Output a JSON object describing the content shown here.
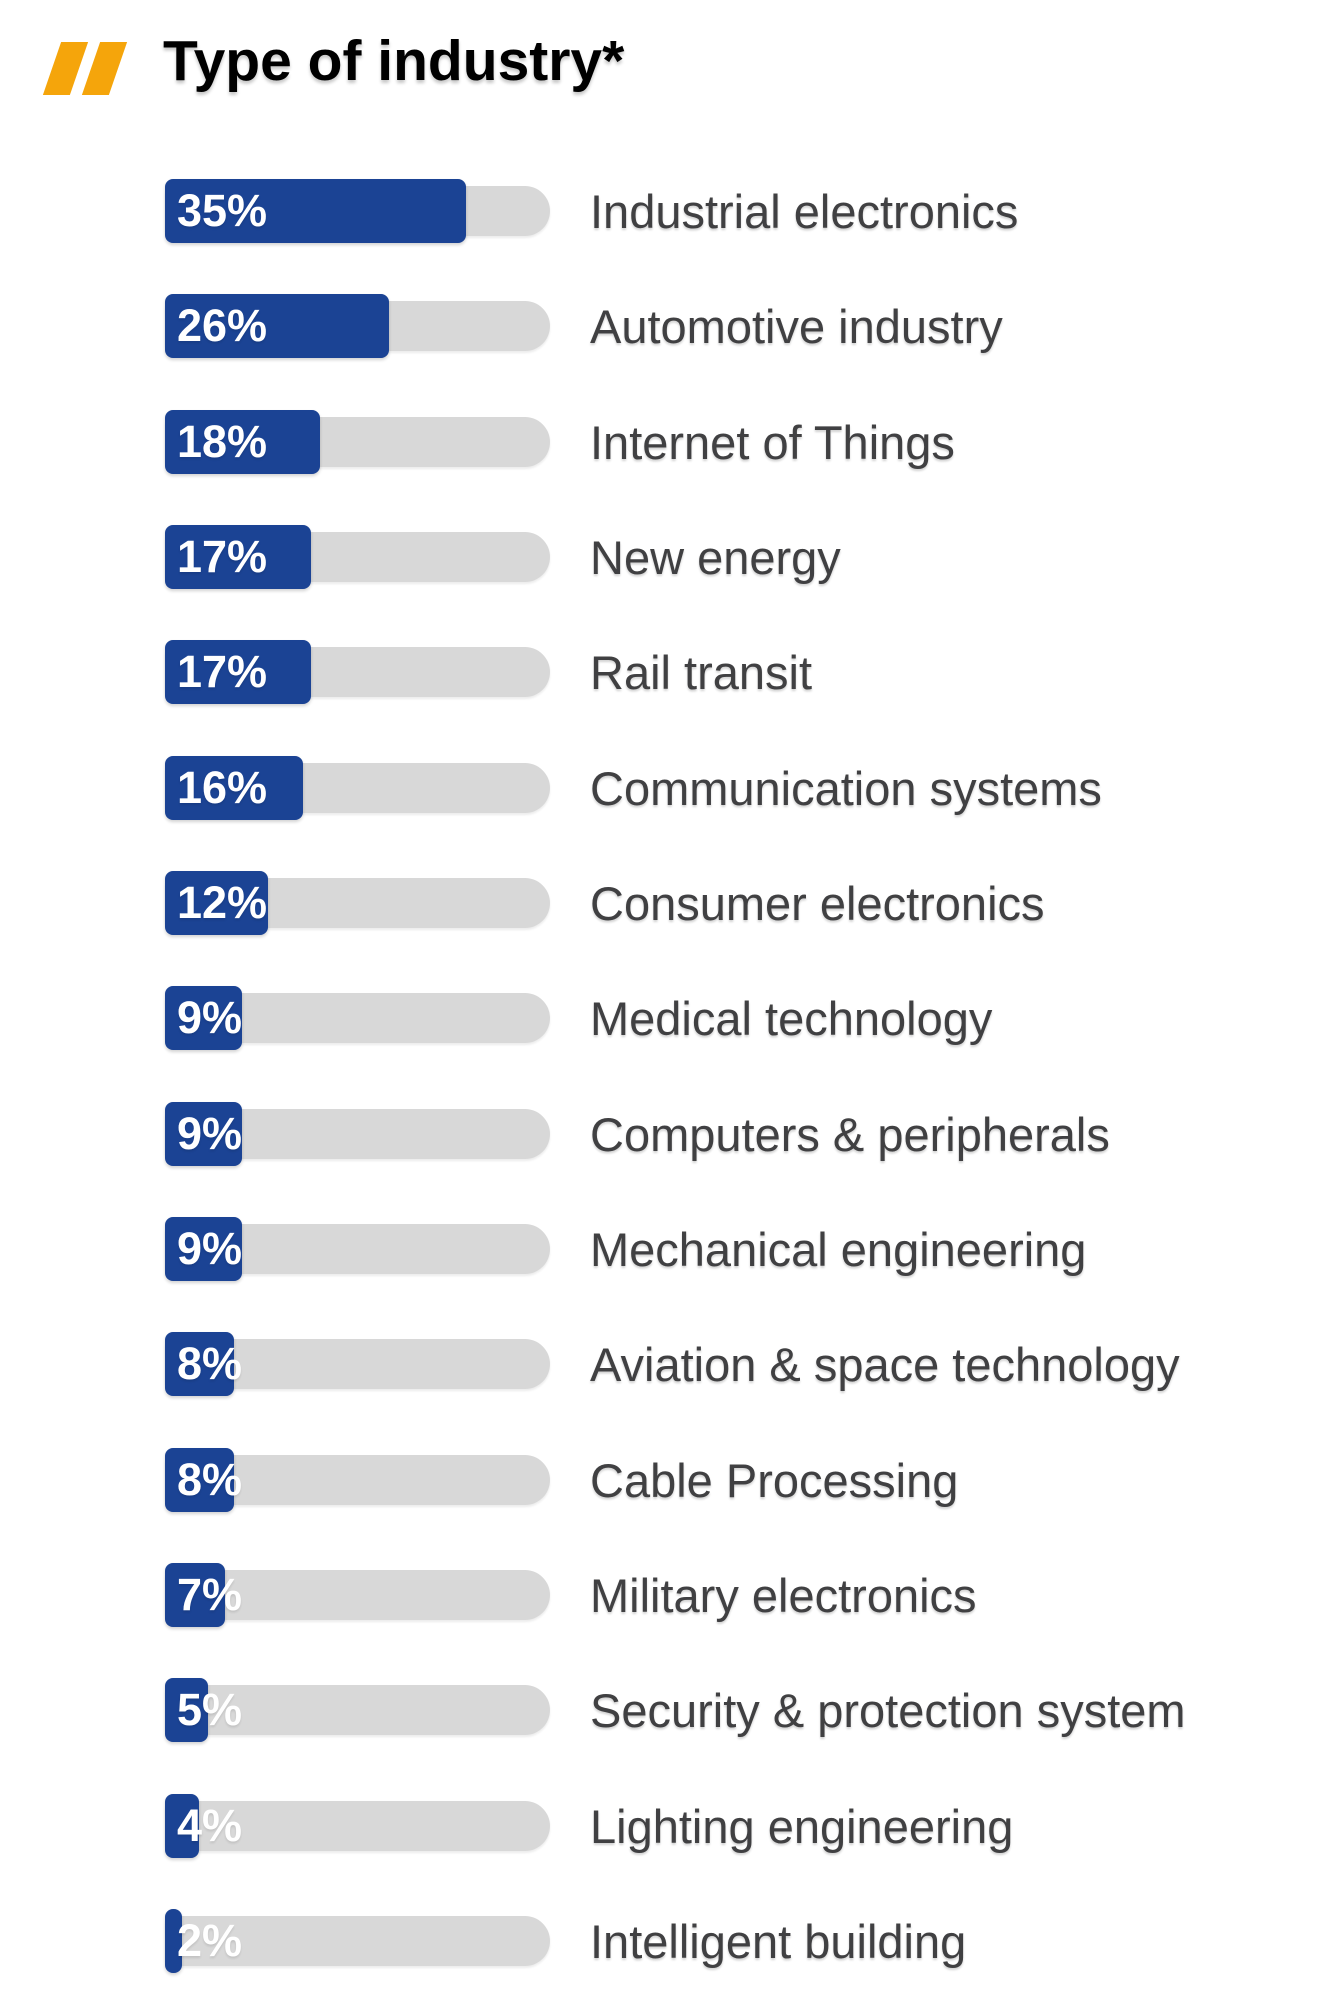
{
  "header": {
    "title": "Type of industry*",
    "accent_color": "#F5A50B"
  },
  "colors": {
    "bar_fill": "#1B4394",
    "bar_track": "#D8D8D8",
    "value_text": "#FFFFFF",
    "label_text": "#404042",
    "title_text": "#000000",
    "background": "#FFFFFF"
  },
  "chart_data": {
    "type": "bar",
    "orientation": "horizontal",
    "title": "Type of industry*",
    "value_unit": "%",
    "xlim": [
      0,
      44.8
    ],
    "legend": "none",
    "grid": "off",
    "categories": [
      "Industrial electronics",
      "Automotive industry",
      "Internet of Things",
      "New energy",
      "Rail transit",
      "Communication systems",
      "Consumer electronics",
      "Medical technology",
      "Computers & peripherals",
      "Mechanical engineering",
      "Aviation & space technology",
      "Cable Processing",
      "Military electronics",
      "Security & protection system",
      "Lighting engineering",
      "Intelligent building"
    ],
    "values": [
      35,
      26,
      18,
      17,
      17,
      16,
      12,
      9,
      9,
      9,
      8,
      8,
      7,
      5,
      4,
      2
    ],
    "rows": [
      {
        "label": "Industrial electronics",
        "percent": 35,
        "value_label": "35%"
      },
      {
        "label": "Automotive industry",
        "percent": 26,
        "value_label": "26%"
      },
      {
        "label": "Internet of Things",
        "percent": 18,
        "value_label": "18%"
      },
      {
        "label": "New energy",
        "percent": 17,
        "value_label": "17%"
      },
      {
        "label": "Rail transit",
        "percent": 17,
        "value_label": "17%"
      },
      {
        "label": "Communication systems",
        "percent": 16,
        "value_label": "16%"
      },
      {
        "label": "Consumer electronics",
        "percent": 12,
        "value_label": "12%"
      },
      {
        "label": "Medical technology",
        "percent": 9,
        "value_label": "9%"
      },
      {
        "label": "Computers & peripherals",
        "percent": 9,
        "value_label": "9%"
      },
      {
        "label": "Mechanical engineering",
        "percent": 9,
        "value_label": "9%"
      },
      {
        "label": "Aviation & space technology",
        "percent": 8,
        "value_label": "8%"
      },
      {
        "label": "Cable Processing",
        "percent": 8,
        "value_label": "8%"
      },
      {
        "label": "Military electronics",
        "percent": 7,
        "value_label": "7%"
      },
      {
        "label": "Security & protection system",
        "percent": 5,
        "value_label": "5%"
      },
      {
        "label": "Lighting engineering",
        "percent": 4,
        "value_label": "4%"
      },
      {
        "label": "Intelligent building",
        "percent": 2,
        "value_label": "2%"
      }
    ]
  }
}
